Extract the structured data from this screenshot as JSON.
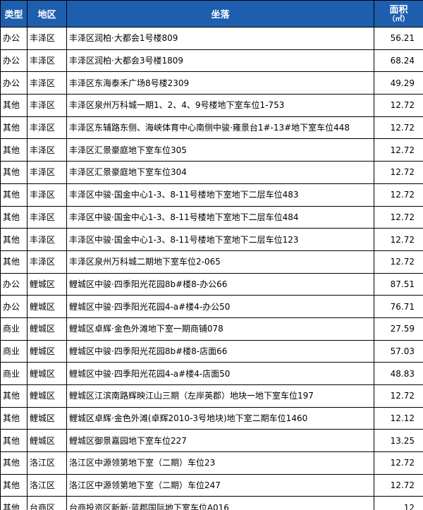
{
  "table": {
    "header": [
      "类型",
      "地区",
      "坐落",
      "面积"
    ],
    "header_unit": "（㎡）",
    "rows": [
      [
        "办公",
        "丰泽区",
        "丰泽区润柏·大都会1号楼809",
        "56.21"
      ],
      [
        "办公",
        "丰泽区",
        "丰泽区润柏·大都会3号楼1809",
        "68.24"
      ],
      [
        "办公",
        "丰泽区",
        "丰泽区东海泰禾广场8号楼2309",
        "49.29"
      ],
      [
        "其他",
        "丰泽区",
        "丰泽区泉州万科城一期1、2、4、9号楼地下室车位1-753",
        "12.72"
      ],
      [
        "其他",
        "丰泽区",
        "丰泽区东辅路东侧、海峡体育中心南侧中骏·雍景台1#-13#地下室车位448",
        "12.72"
      ],
      [
        "其他",
        "丰泽区",
        "丰泽区汇景豪庭地下室车位305",
        "12.72"
      ],
      [
        "其他",
        "丰泽区",
        "丰泽区汇景豪庭地下室车位304",
        "12.72"
      ],
      [
        "其他",
        "丰泽区",
        "丰泽区中骏·国金中心1-3、8-11号楼地下室地下二层车位483",
        "12.72"
      ],
      [
        "其他",
        "丰泽区",
        "丰泽区中骏·国金中心1-3、8-11号楼地下室地下二层车位484",
        "12.72"
      ],
      [
        "其他",
        "丰泽区",
        "丰泽区中骏·国金中心1-3、8-11号楼地下室地下二层车位123",
        "12.72"
      ],
      [
        "其他",
        "丰泽区",
        "丰泽区泉州万科城二期地下室车位2-065",
        "12.72"
      ],
      [
        "办公",
        "鲤城区",
        "鲤城区中骏·四季阳光花园8b#楼8-办公66",
        "87.51"
      ],
      [
        "办公",
        "鲤城区",
        "鲤城区中骏·四季阳光花园4-a#楼4-办公50",
        "76.71"
      ],
      [
        "商业",
        "鲤城区",
        "鲤城区卓辉·金色外滩地下室一期商铺078",
        "27.59"
      ],
      [
        "商业",
        "鲤城区",
        "鲤城区中骏·四季阳光花园8b#楼8-店面66",
        "57.03"
      ],
      [
        "商业",
        "鲤城区",
        "鲤城区中骏·四季阳光花园4-a#楼4-店面50",
        "48.83"
      ],
      [
        "其他",
        "鲤城区",
        "鲤城区江滨南路辉映江山三期（左岸英郡）地块一地下室车位197",
        "12.72"
      ],
      [
        "其他",
        "鲤城区",
        "鲤城区卓辉·金色外滩(卓辉2010-3号地块)地下室二期车位1460",
        "12.12"
      ],
      [
        "其他",
        "鲤城区",
        "鲤城区御景嘉园地下室车位227",
        "13.25"
      ],
      [
        "其他",
        "洛江区",
        "洛江区中源领第地下室（二期）车位23",
        "12.72"
      ],
      [
        "其他",
        "洛江区",
        "洛江区中源领第地下室（二期）车位247",
        "12.72"
      ],
      [
        "其他",
        "台商区",
        "台商投资区新新·蓝郡国际地下室车位A016",
        "12"
      ]
    ]
  }
}
